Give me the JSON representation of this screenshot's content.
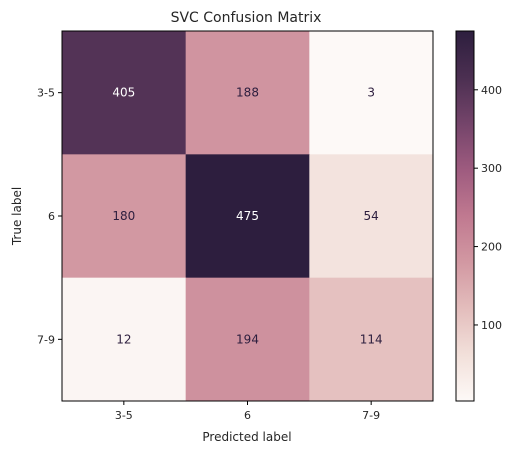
{
  "chart_data": {
    "type": "heatmap",
    "title": "SVC Confusion Matrix",
    "xlabel": "Predicted label",
    "ylabel": "True label",
    "x_categories": [
      "3-5",
      "6",
      "7-9"
    ],
    "y_categories": [
      "3-5",
      "6",
      "7-9"
    ],
    "values": [
      [
        405,
        188,
        3
      ],
      [
        180,
        475,
        54
      ],
      [
        12,
        194,
        114
      ]
    ],
    "colorbar": {
      "min": 3,
      "max": 475,
      "ticks": [
        100,
        200,
        300,
        400
      ]
    },
    "colormap": [
      "#fdf9f7",
      "#f2e0da",
      "#e3bdbc",
      "#d298a2",
      "#c07990",
      "#9e5b7f",
      "#74446a",
      "#4b2f51",
      "#2d1e3e"
    ],
    "text_colors": {
      "light": "#ffffff",
      "dark": "#2d1e3e"
    }
  }
}
